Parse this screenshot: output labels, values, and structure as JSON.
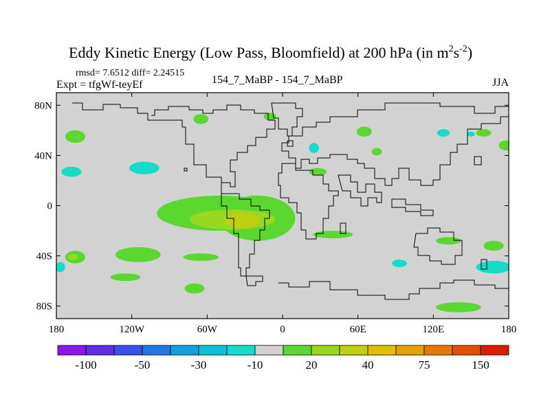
{
  "chart_data": {
    "type": "heatmap",
    "title_main": "Eddy Kinetic Energy (Low Pass, Bloomfield) at 200 hPa (in m",
    "title_unit_sup1": "2",
    "title_unit_s": "s",
    "title_unit_sup2": "-2",
    "title_close": ")",
    "stats": "rmsd= 7.6512 diff= 2.24515",
    "expt": "Expt = tfgWf-teyEf",
    "center_label": "154_7_MaBP - 154_7_MaBP",
    "season": "JJA",
    "lon_range": [
      -180,
      180
    ],
    "lat_range": [
      -90,
      90
    ],
    "x_ticks": [
      {
        "lon": -180,
        "label": "180"
      },
      {
        "lon": -120,
        "label": "120W"
      },
      {
        "lon": -60,
        "label": "60W"
      },
      {
        "lon": 0,
        "label": "0"
      },
      {
        "lon": 60,
        "label": "60E"
      },
      {
        "lon": 120,
        "label": "120E"
      },
      {
        "lon": 180,
        "label": "180"
      }
    ],
    "y_ticks": [
      {
        "lat": 80,
        "label": "80N"
      },
      {
        "lat": 40,
        "label": "40N"
      },
      {
        "lat": 0,
        "label": "0"
      },
      {
        "lat": -40,
        "label": "40S"
      },
      {
        "lat": -80,
        "label": "80S"
      }
    ],
    "colorbar": {
      "colors": [
        "#8a18e6",
        "#6030e0",
        "#3a50e6",
        "#1f78e6",
        "#10a0e0",
        "#10c0d8",
        "#14dcc8",
        "#d2d2d2",
        "#5ad830",
        "#98d820",
        "#c0d010",
        "#e0c000",
        "#e8a000",
        "#e87800",
        "#e05000",
        "#d82000"
      ],
      "labels": [
        {
          "boundary": 2,
          "text": "-100"
        },
        {
          "boundary": 4,
          "text": "-50"
        },
        {
          "boundary": 6,
          "text": "-30"
        },
        {
          "boundary": 8,
          "text": "-10"
        },
        {
          "boundary": 10,
          "text": "20"
        },
        {
          "boundary": 12,
          "text": "40"
        },
        {
          "boundary": 14,
          "text": "75"
        },
        {
          "boundary": 16,
          "text": "150"
        }
      ]
    },
    "background_color": "#d2d2d2",
    "contour_regions": [
      {
        "color": "#5ad830",
        "lon": -165,
        "lat": 55,
        "rlon": 8,
        "rlat": 5
      },
      {
        "color": "#5ad830",
        "lon": -65,
        "lat": 69,
        "rlon": 6,
        "rlat": 4
      },
      {
        "color": "#5ad830",
        "lon": -10,
        "lat": 71,
        "rlon": 5,
        "rlat": 3
      },
      {
        "color": "#5ad830",
        "lon": 65,
        "lat": 59,
        "rlon": 6,
        "rlat": 4
      },
      {
        "color": "#5ad830",
        "lon": 75,
        "lat": 43,
        "rlon": 4,
        "rlat": 3
      },
      {
        "color": "#5ad830",
        "lon": 160,
        "lat": 58,
        "rlon": 6,
        "rlat": 3
      },
      {
        "color": "#5ad830",
        "lon": 178,
        "lat": 48,
        "rlon": 6,
        "rlat": 4
      },
      {
        "color": "#5ad830",
        "lon": 28,
        "lat": 27,
        "rlon": 7,
        "rlat": 3
      },
      {
        "color": "#5ad830",
        "lon": -50,
        "lat": -6,
        "rlon": 50,
        "rlat": 14
      },
      {
        "color": "#5ad830",
        "lon": -20,
        "lat": -10,
        "rlon": 30,
        "rlat": 18
      },
      {
        "color": "#98d820",
        "lon": -40,
        "lat": -11,
        "rlon": 34,
        "rlat": 8
      },
      {
        "color": "#c0d010",
        "lon": -32,
        "lat": -12,
        "rlon": 14,
        "rlat": 6
      },
      {
        "color": "#5ad830",
        "lon": 40,
        "lat": -23,
        "rlon": 16,
        "rlat": 3
      },
      {
        "color": "#5ad830",
        "lon": -115,
        "lat": -39,
        "rlon": 18,
        "rlat": 6
      },
      {
        "color": "#5ad830",
        "lon": -165,
        "lat": -41,
        "rlon": 8,
        "rlat": 5
      },
      {
        "color": "#98d820",
        "lon": -167,
        "lat": -41,
        "rlon": 4,
        "rlat": 2.5
      },
      {
        "color": "#5ad830",
        "lon": -65,
        "lat": -41,
        "rlon": 14,
        "rlat": 3
      },
      {
        "color": "#5ad830",
        "lon": -125,
        "lat": -57,
        "rlon": 12,
        "rlat": 3
      },
      {
        "color": "#5ad830",
        "lon": -70,
        "lat": -66,
        "rlon": 8,
        "rlat": 4
      },
      {
        "color": "#5ad830",
        "lon": 132,
        "lat": -28,
        "rlon": 10,
        "rlat": 3
      },
      {
        "color": "#5ad830",
        "lon": 168,
        "lat": -32,
        "rlon": 8,
        "rlat": 4
      },
      {
        "color": "#5ad830",
        "lon": 140,
        "lat": -81,
        "rlon": 18,
        "rlat": 4
      },
      {
        "color": "#14dcc8",
        "lon": -110,
        "lat": 30,
        "rlon": 12,
        "rlat": 5
      },
      {
        "color": "#14dcc8",
        "lon": -168,
        "lat": 27,
        "rlon": 8,
        "rlat": 4
      },
      {
        "color": "#14dcc8",
        "lon": 25,
        "lat": 46,
        "rlon": 4,
        "rlat": 4
      },
      {
        "color": "#14dcc8",
        "lon": 93,
        "lat": -46,
        "rlon": 6,
        "rlat": 3
      },
      {
        "color": "#14dcc8",
        "lon": 168,
        "lat": -49,
        "rlon": 14,
        "rlat": 5
      },
      {
        "color": "#14dcc8",
        "lon": -177,
        "lat": -49,
        "rlon": 4,
        "rlat": 4
      },
      {
        "color": "#14dcc8",
        "lon": 128,
        "lat": 58,
        "rlon": 5,
        "rlat": 3
      },
      {
        "color": "#14dcc8",
        "lon": 150,
        "lat": 57,
        "rlon": 3,
        "rlat": 2
      }
    ]
  }
}
